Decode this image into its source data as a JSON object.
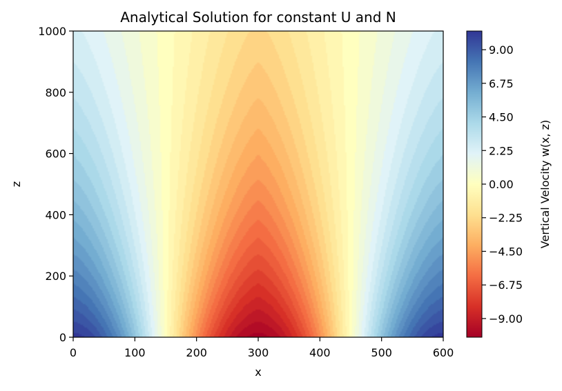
{
  "chart_data": {
    "type": "heatmap",
    "subtype": "filled-contour",
    "title": "Analytical Solution for constant U and N",
    "xlabel": "x",
    "ylabel": "z",
    "xlim": [
      0,
      600
    ],
    "ylim": [
      0,
      1000
    ],
    "xticks": [
      0,
      100,
      200,
      300,
      400,
      500,
      600
    ],
    "yticks": [
      0,
      200,
      400,
      600,
      800,
      1000
    ],
    "colorbar": {
      "label": "Vertical Velocity w(x, z)",
      "range": [
        -10.25,
        10.25
      ],
      "ticks": [
        -9.0,
        -6.75,
        -4.5,
        -2.25,
        0.0,
        2.25,
        4.5,
        6.75,
        9.0
      ],
      "tick_labels": [
        "−9.00",
        "−6.75",
        "−4.50",
        "−2.25",
        "0.00",
        "2.25",
        "4.50",
        "6.75",
        "9.00"
      ],
      "colormap": "RdYlBu"
    },
    "field": {
      "description": "w(x,z) = A * cos(2*pi*(x-300)/600 + pi) sampled; peaks of +10 at x=0 and x=600, z=0; trough of -10 at x=300, z=0; magnitude decays with height",
      "amplitude": 10.2,
      "wavelength_x": 600,
      "trough_x": 300,
      "decay_scale_z": 700
    },
    "grid": false,
    "legend": "colorbar-right"
  }
}
